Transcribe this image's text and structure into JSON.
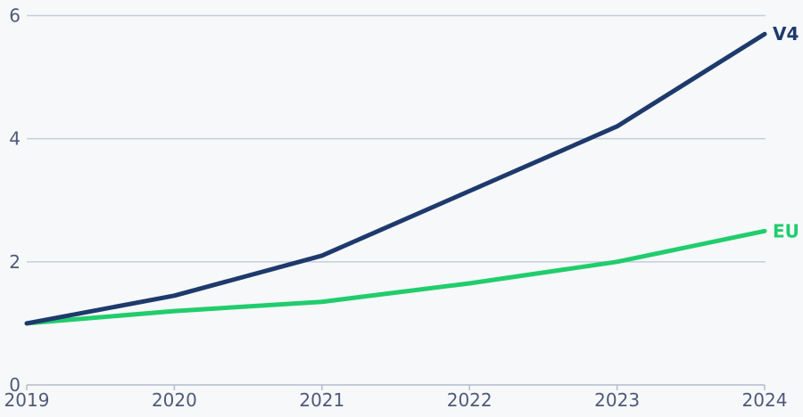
{
  "chart_data": {
    "type": "line",
    "title": "",
    "xlabel": "",
    "ylabel": "",
    "x": [
      2019,
      2020,
      2021,
      2022,
      2023,
      2024
    ],
    "x_tick_labels": [
      "2019",
      "2020",
      "2021",
      "2022",
      "2023",
      "2024"
    ],
    "series": [
      {
        "name": "EU",
        "color": "#20cd6c",
        "values": [
          1.0,
          1.2,
          1.35,
          1.65,
          2.0,
          2.5
        ]
      },
      {
        "name": "V4",
        "color": "#1e3a6c",
        "values": [
          1.0,
          1.45,
          2.1,
          3.15,
          4.2,
          5.7
        ]
      }
    ],
    "ylim": [
      0,
      6
    ],
    "yticks": [
      0,
      2,
      4,
      6
    ],
    "ytick_labels": [
      "0",
      "2",
      "4",
      "6"
    ],
    "grid": true,
    "legend_position": "labels-at-line-ends"
  },
  "colors": {
    "background": "#f7f8fa",
    "gridline": "#c6cdda",
    "axis": "#b3bccd",
    "tick_label": "#4e5a77",
    "v4_line": "#1e3a6c",
    "eu_line": "#20cd6c"
  },
  "layout_hints": {
    "line_width": 5,
    "tick_font_size": 20,
    "series_label_font_size": 20
  }
}
